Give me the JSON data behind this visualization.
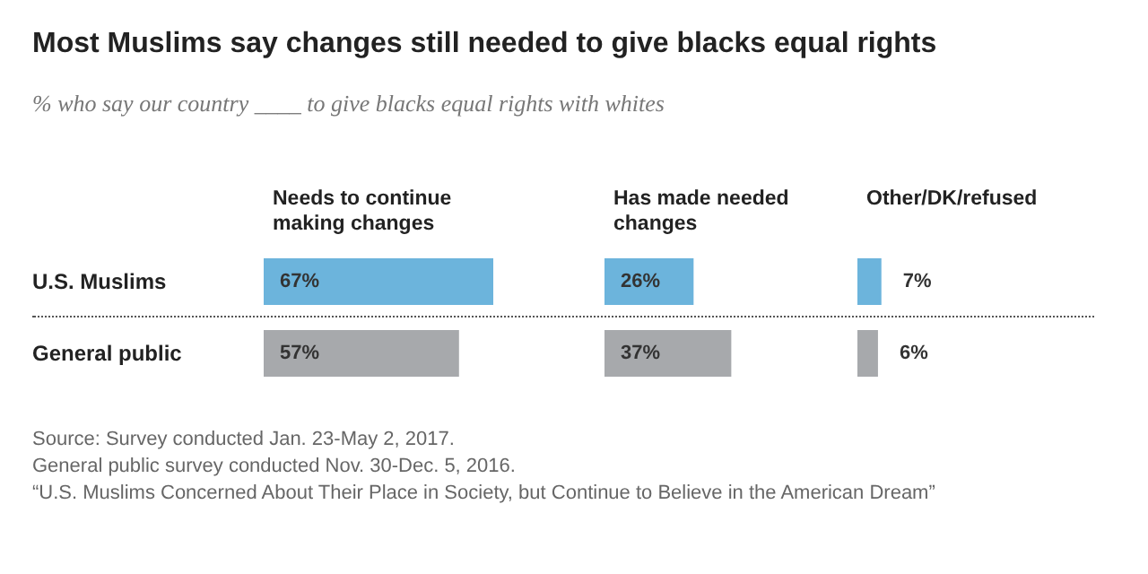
{
  "chart_data": [
    {
      "type": "bar",
      "orientation": "horizontal",
      "title": "Most Muslims say changes still needed to give blacks equal rights",
      "subtitle": "% who say our country ____ to give blacks equal rights with whites",
      "categories": [
        "U.S. Muslims",
        "General public"
      ],
      "tick_labels": "y",
      "series": [
        {
          "name": "Needs to continue making changes",
          "colors": [
            "#6cb4dc",
            "#a7a9ac"
          ],
          "values": [
            67,
            57
          ],
          "value_labels": [
            "67%",
            "57%"
          ]
        }
      ]
    },
    {
      "type": "bar",
      "orientation": "horizontal",
      "categories": [
        "U.S. Muslims",
        "General public"
      ],
      "tick_labels": false,
      "series": [
        {
          "name": "Has made needed changes",
          "colors": [
            "#6cb4dc",
            "#a7a9ac"
          ],
          "values": [
            26,
            37
          ],
          "value_labels": [
            "26%",
            "37%"
          ]
        }
      ]
    },
    {
      "type": "bar",
      "orientation": "horizontal",
      "categories": [
        "U.S. Muslims",
        "General public"
      ],
      "tick_labels": false,
      "series": [
        {
          "name": "Other/DK/refused",
          "colors": [
            "#6cb4dc",
            "#a7a9ac"
          ],
          "values": [
            7,
            6
          ],
          "value_labels": [
            "7%",
            "6%"
          ]
        }
      ],
      "annotations": [
        "Source: Survey conducted Jan. 23-May 2, 2017.",
        "General public survey conducted Nov. 30-Dec. 5, 2016.",
        "“U.S. Muslims Concerned About Their Place in Society, but Continue to Believe in the American Dream”"
      ]
    }
  ]
}
